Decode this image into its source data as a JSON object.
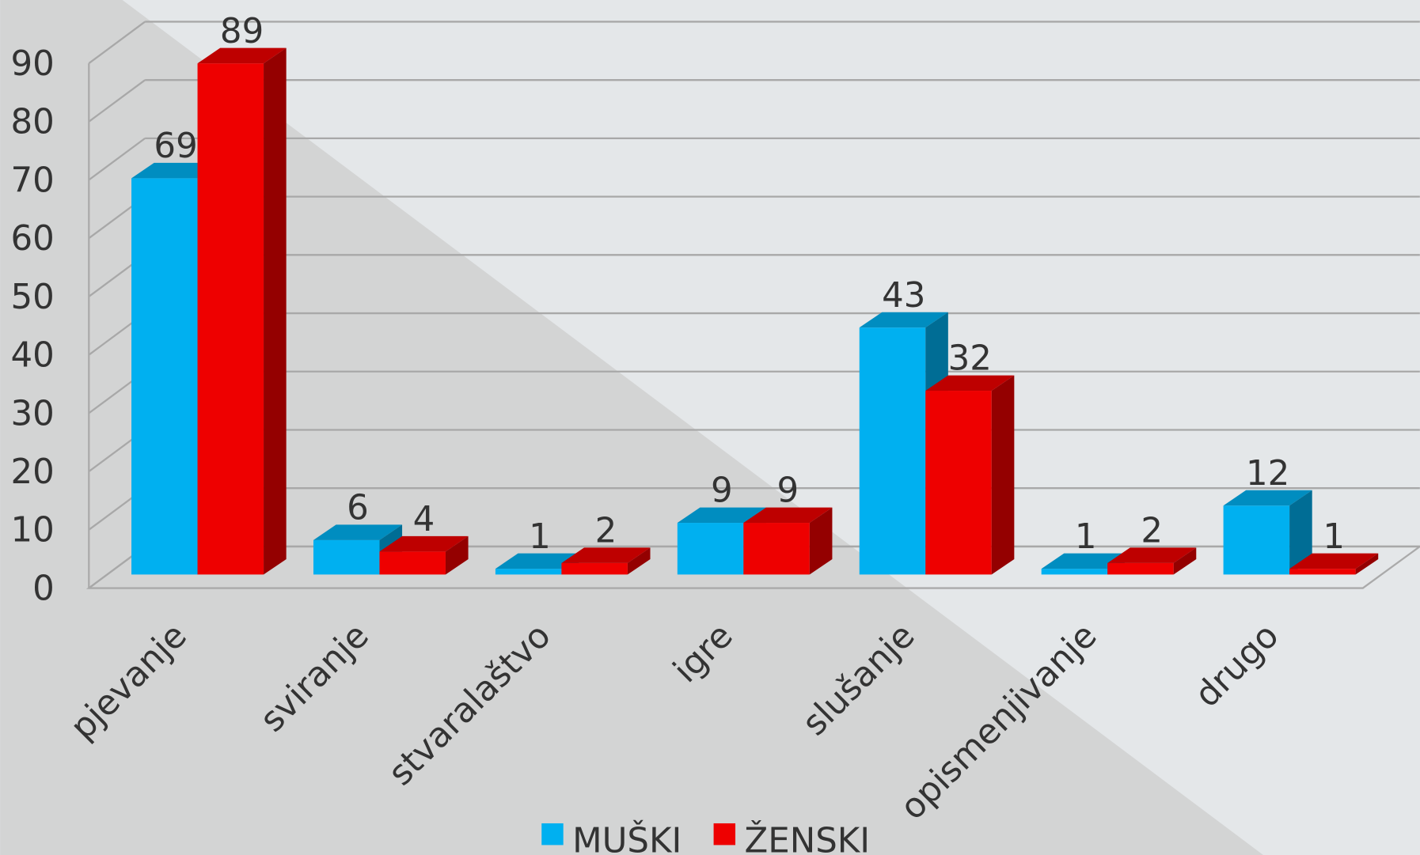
{
  "chart_data": {
    "type": "bar3d",
    "categories": [
      "pjevanje",
      "sviranje",
      "stvaralaštvo",
      "igre",
      "slušanje",
      "opismenjivanje",
      "drugo"
    ],
    "series": [
      {
        "name": "MUŠKI",
        "color": "#00b0f0",
        "values": [
          69,
          6,
          1,
          9,
          43,
          1,
          12
        ]
      },
      {
        "name": "ŽENSKI",
        "color": "#ee0000",
        "values": [
          89,
          4,
          2,
          9,
          32,
          2,
          1
        ]
      }
    ],
    "ylim": [
      0,
      90
    ],
    "yticks": [
      0,
      10,
      20,
      30,
      40,
      50,
      60,
      70,
      80,
      90
    ],
    "grid": true,
    "legend": "bottom"
  }
}
